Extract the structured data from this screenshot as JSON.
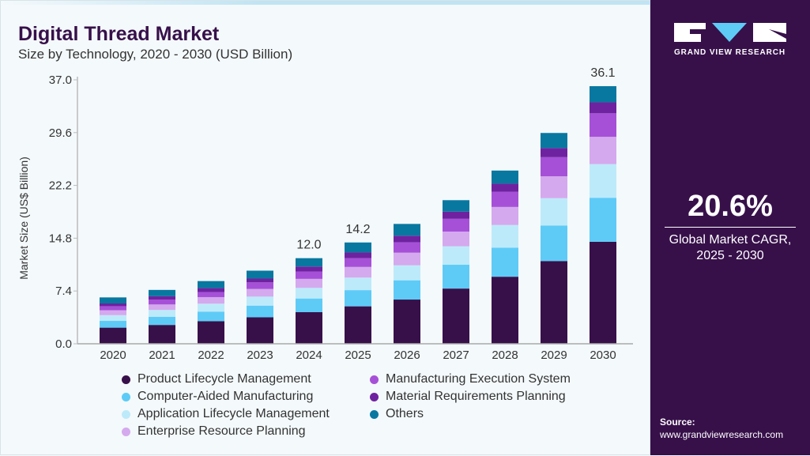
{
  "header": {
    "title": "Digital Thread Market",
    "subtitle": "Size by Technology, 2020 - 2030 (USD Billion)"
  },
  "sidebar": {
    "brand": "GRAND VIEW RESEARCH",
    "cagr_value": "20.6%",
    "cagr_label_line1": "Global Market CAGR,",
    "cagr_label_line2": "2025 - 2030",
    "source_label": "Source:",
    "source_url": "www.grandviewresearch.com"
  },
  "chart_data": {
    "type": "bar",
    "stacked": true,
    "ylabel": "Market Size (US$ Billion)",
    "ylim": [
      0,
      37
    ],
    "yticks": [
      "0.0",
      "7.4",
      "14.8",
      "22.2",
      "29.6",
      "37.0"
    ],
    "categories": [
      "2020",
      "2021",
      "2022",
      "2023",
      "2024",
      "2025",
      "2026",
      "2027",
      "2028",
      "2029",
      "2030"
    ],
    "total_labels": {
      "2024": "12.0",
      "2025": "14.2",
      "2030": "36.1"
    },
    "legend_placement": "bottom",
    "series": [
      {
        "name": "Product Lifecycle Management",
        "color": "#37104a",
        "values": [
          2.26,
          2.64,
          3.17,
          3.71,
          4.43,
          5.25,
          6.2,
          7.74,
          9.4,
          11.6,
          14.3
        ]
      },
      {
        "name": "Computer-Aided Manufacturing",
        "color": "#5ecbf7",
        "values": [
          0.95,
          1.15,
          1.34,
          1.64,
          1.92,
          2.27,
          2.7,
          3.34,
          4.06,
          4.98,
          6.17
        ]
      },
      {
        "name": "Application Lifecycle Management",
        "color": "#bdeafa",
        "values": [
          0.8,
          0.95,
          1.11,
          1.26,
          1.49,
          1.76,
          2.1,
          2.58,
          3.19,
          3.83,
          4.71
        ]
      },
      {
        "name": "Enterprise Resource Planning",
        "color": "#d5a9ee",
        "values": [
          0.69,
          0.77,
          0.92,
          1.08,
          1.26,
          1.49,
          1.77,
          2.07,
          2.53,
          3.07,
          3.83
        ]
      },
      {
        "name": "Manufacturing Execution System",
        "color": "#a650d8",
        "values": [
          0.57,
          0.69,
          0.72,
          0.92,
          1.03,
          1.22,
          1.45,
          1.79,
          2.14,
          2.68,
          3.3
        ]
      },
      {
        "name": "Material Requirements Planning",
        "color": "#6f22a0",
        "values": [
          0.38,
          0.46,
          0.54,
          0.53,
          0.69,
          0.81,
          0.93,
          1.0,
          1.12,
          1.27,
          1.53
        ]
      },
      {
        "name": "Others",
        "color": "#0878a0",
        "values": [
          0.85,
          0.89,
          0.99,
          1.11,
          1.18,
          1.4,
          1.65,
          1.61,
          1.84,
          2.12,
          2.27
        ]
      }
    ]
  }
}
